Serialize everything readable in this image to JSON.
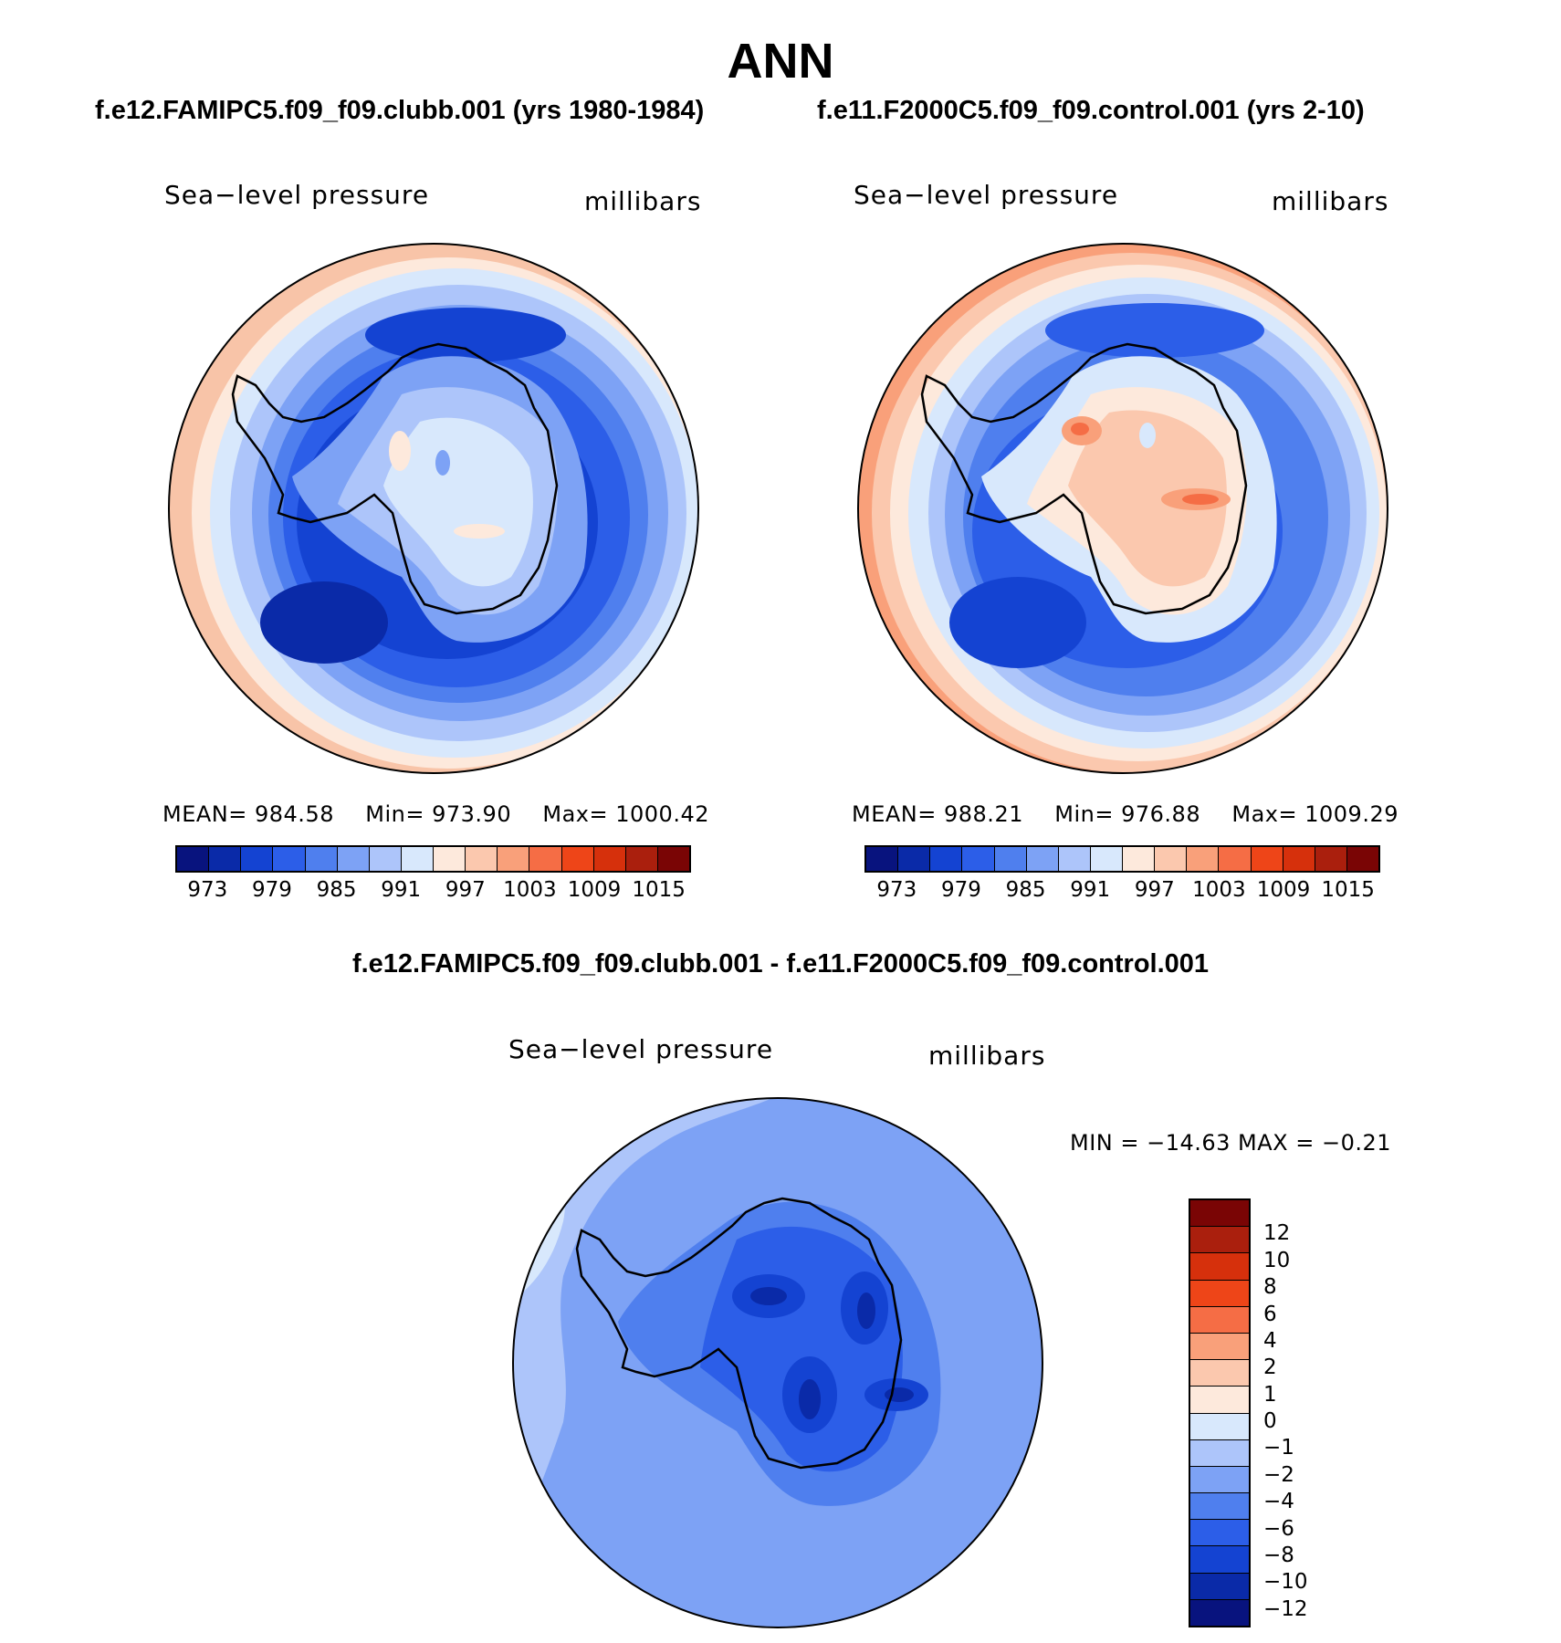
{
  "figure": {
    "title": "ANN",
    "difference_title": "f.e12.FAMIPC5.f09_f09.clubb.001 - f.e11.F2000C5.f09_f09.control.001"
  },
  "panels": [
    {
      "case_title": "f.e12.FAMIPC5.f09_f09.clubb.001 (yrs 1980-1984)",
      "variable": "Sea−level pressure",
      "units": "millibars",
      "stats": {
        "mean_label": "MEAN=",
        "mean": "984.58",
        "min_label": "Min=",
        "min": "973.90",
        "max_label": "Max=",
        "max": "1000.42"
      }
    },
    {
      "case_title": "f.e11.F2000C5.f09_f09.control.001 (yrs 2-10)",
      "variable": "Sea−level pressure",
      "units": "millibars",
      "stats": {
        "mean_label": "MEAN=",
        "mean": "988.21",
        "min_label": "Min=",
        "min": "976.88",
        "max_label": "Max=",
        "max": "1009.29"
      }
    },
    {
      "variable": "Sea−level pressure",
      "units": "millibars",
      "stats_text": "MIN = −14.63 MAX =  −0.21"
    }
  ],
  "colorbar_abs": {
    "colors": [
      "#08137e",
      "#0a2aa8",
      "#1443d2",
      "#2c5ee8",
      "#4f7fee",
      "#7da2f5",
      "#adc5fa",
      "#d8e8fc",
      "#fde9dc",
      "#fbc8ae",
      "#f9a07a",
      "#f56d45",
      "#ee4518",
      "#d6300c",
      "#aa1f0d",
      "#7a0505"
    ],
    "tick_labels": [
      "973",
      "979",
      "985",
      "991",
      "997",
      "1003",
      "1009",
      "1015"
    ]
  },
  "colorbar_diff": {
    "colors": [
      "#08137e",
      "#0a2aa8",
      "#1443d2",
      "#2c5ee8",
      "#4f7fee",
      "#7da2f5",
      "#adc5fa",
      "#d8e8fc",
      "#fde9dc",
      "#fbc8ae",
      "#f9a07a",
      "#f56d45",
      "#ee4518",
      "#d6300c",
      "#aa1f0d",
      "#7a0505"
    ],
    "tick_labels": [
      "12",
      "10",
      "8",
      "6",
      "4",
      "2",
      "1",
      "0",
      "−1",
      "−2",
      "−4",
      "−6",
      "−8",
      "−10",
      "−12"
    ]
  },
  "colors": {
    "ring_outer_warm": "#f8c4a8",
    "ocean_dark": "#1443d2",
    "continent_light": "#d8e8fc",
    "continent_warm": "#f9a07a",
    "diff_background": "#7da2f5",
    "diff_continent": "#2c5ee8"
  }
}
